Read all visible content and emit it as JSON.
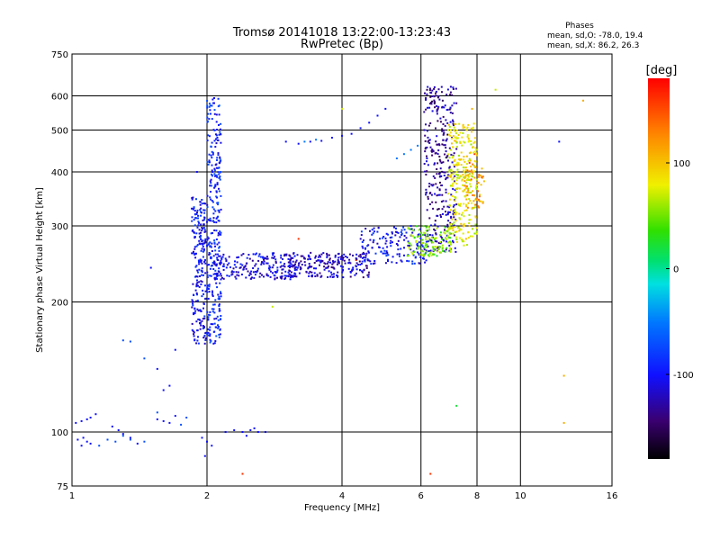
{
  "chart_data": {
    "type": "scatter",
    "title": "Tromsø 20141018 13:22:00-13:23:43",
    "subtitle": "RwPretec (Bp)",
    "xlabel": "Frequency [MHz]",
    "ylabel": "Stationary phase Virtual Height [km]",
    "x_scale": "log",
    "y_scale": "log",
    "xlim": [
      1,
      16
    ],
    "ylim": [
      75,
      750
    ],
    "x_ticks": [
      1,
      2,
      4,
      6,
      8,
      10,
      16
    ],
    "x_tick_labels": [
      "1",
      "2",
      "4",
      "6",
      "8",
      "10",
      "16"
    ],
    "y_ticks": [
      75,
      100,
      200,
      300,
      400,
      500,
      600,
      750
    ],
    "y_tick_labels": [
      "75",
      "100",
      "200",
      "300",
      "400",
      "500",
      "600",
      "750"
    ],
    "grid": true,
    "phase_stats": {
      "heading": "Phases",
      "line_o": "mean, sd,O: -78.0, 19.4",
      "line_x": "mean, sd,X: 86.2, 26.3"
    },
    "colorbar": {
      "label": "[deg]",
      "range": [
        -180,
        180
      ],
      "ticks": [
        100,
        0,
        -100
      ],
      "tick_labels": [
        "100",
        "0",
        "-100"
      ]
    },
    "series": [
      {
        "phase": -100,
        "points": [
          [
            1.03,
            96
          ],
          [
            1.05,
            93
          ],
          [
            1.08,
            95
          ],
          [
            1.1,
            94
          ],
          [
            1.06,
            97
          ],
          [
            1.02,
            105
          ],
          [
            1.05,
            106
          ],
          [
            1.08,
            107
          ],
          [
            1.1,
            108
          ],
          [
            1.13,
            110
          ],
          [
            1.23,
            103
          ],
          [
            1.27,
            101
          ],
          [
            1.3,
            99
          ],
          [
            1.35,
            97
          ],
          [
            1.4,
            94
          ],
          [
            1.55,
            107
          ],
          [
            1.6,
            106
          ],
          [
            1.65,
            105
          ],
          [
            1.7,
            109
          ],
          [
            1.6,
            125
          ],
          [
            1.65,
            128
          ],
          [
            1.55,
            140
          ],
          [
            1.7,
            155
          ],
          [
            1.5,
            240
          ],
          [
            1.95,
            97
          ],
          [
            2.0,
            95
          ],
          [
            2.05,
            93
          ],
          [
            1.98,
            88
          ],
          [
            2.2,
            100
          ],
          [
            2.3,
            101
          ],
          [
            2.4,
            100
          ],
          [
            2.5,
            101
          ],
          [
            2.6,
            100
          ],
          [
            2.7,
            100
          ],
          [
            2.55,
            102
          ],
          [
            2.45,
            98
          ],
          [
            1.9,
            400
          ],
          [
            3.0,
            470
          ],
          [
            3.2,
            465
          ],
          [
            3.4,
            470
          ],
          [
            3.6,
            472
          ],
          [
            3.8,
            480
          ],
          [
            4.0,
            485
          ],
          [
            4.2,
            490
          ],
          [
            4.4,
            505
          ],
          [
            4.6,
            520
          ],
          [
            4.8,
            540
          ],
          [
            5.0,
            560
          ],
          [
            12.2,
            470
          ]
        ]
      },
      {
        "phase": -70,
        "points": [
          [
            1.15,
            93
          ],
          [
            1.2,
            96
          ],
          [
            1.25,
            95
          ],
          [
            1.3,
            98
          ],
          [
            1.35,
            96
          ],
          [
            1.45,
            95
          ],
          [
            1.3,
            163
          ],
          [
            1.35,
            162
          ],
          [
            1.45,
            148
          ],
          [
            1.55,
            111
          ],
          [
            1.75,
            104
          ],
          [
            1.8,
            108
          ]
        ]
      },
      {
        "phase": -50,
        "points": [
          [
            5.3,
            430
          ],
          [
            5.5,
            440
          ],
          [
            5.7,
            450
          ],
          [
            5.9,
            460
          ],
          [
            3.3,
            470
          ],
          [
            3.5,
            475
          ]
        ]
      },
      {
        "phase": 20,
        "points": [
          [
            7.2,
            115
          ]
        ]
      },
      {
        "phase": 70,
        "points": [
          [
            7.0,
            450
          ],
          [
            6.9,
            500
          ],
          [
            7.0,
            560
          ],
          [
            4.0,
            560
          ],
          [
            2.8,
            195
          ],
          [
            8.8,
            620
          ]
        ]
      },
      {
        "phase": 110,
        "points": [
          [
            12.5,
            135
          ],
          [
            12.5,
            105
          ],
          [
            13.8,
            585
          ],
          [
            7.6,
            500
          ],
          [
            7.8,
            560
          ]
        ]
      },
      {
        "phase": 160,
        "points": [
          [
            2.4,
            80
          ],
          [
            6.3,
            80
          ],
          [
            3.2,
            280
          ],
          [
            4.3,
            250
          ],
          [
            7.7,
            420
          ],
          [
            7.9,
            440
          ]
        ]
      }
    ],
    "ridges": [
      {
        "phase": -100,
        "x_min": 1.85,
        "x_max": 1.99,
        "y_min": 160,
        "y_max": 350,
        "count": 220
      },
      {
        "phase": -90,
        "x_min": 2.0,
        "x_max": 2.15,
        "y_min": 160,
        "y_max": 600,
        "count": 300
      },
      {
        "phase": -110,
        "x_min": 2.0,
        "x_max": 3.2,
        "y_min": 225,
        "y_max": 260,
        "count": 220
      },
      {
        "phase": -120,
        "x_min": 3.0,
        "x_max": 4.6,
        "y_min": 228,
        "y_max": 260,
        "count": 220
      },
      {
        "phase": -100,
        "x_min": 4.4,
        "x_max": 6.2,
        "y_min": 245,
        "y_max": 300,
        "count": 160
      },
      {
        "phase": -130,
        "x_min": 6.1,
        "x_max": 7.2,
        "y_min": 260,
        "y_max": 630,
        "count": 320
      },
      {
        "phase": 50,
        "x_min": 5.6,
        "x_max": 7.0,
        "y_min": 255,
        "y_max": 300,
        "count": 120
      },
      {
        "phase": 80,
        "x_min": 6.9,
        "x_max": 8.0,
        "y_min": 270,
        "y_max": 520,
        "count": 280
      },
      {
        "phase": 120,
        "x_min": 7.5,
        "x_max": 8.3,
        "y_min": 330,
        "y_max": 420,
        "count": 60
      }
    ]
  }
}
